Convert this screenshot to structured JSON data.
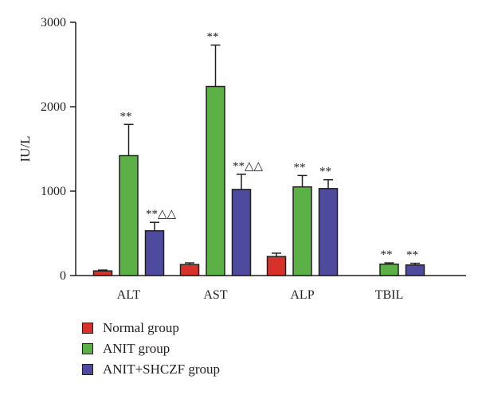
{
  "chart_data": {
    "type": "bar",
    "title": "",
    "xlabel": "",
    "ylabel": "IU/L",
    "ylim": [
      0,
      3000
    ],
    "yticks": [
      "0",
      "1000",
      "2000",
      "3000"
    ],
    "categories": [
      "ALT",
      "AST",
      "ALP",
      "TBIL"
    ],
    "grid": false,
    "legend_position": "bottom-left",
    "series": [
      {
        "name": "Normal group",
        "color": "#d7322a",
        "values": [
          55,
          130,
          225,
          null
        ],
        "errors": [
          10,
          20,
          40,
          null
        ],
        "annotations": [
          "",
          "",
          "",
          ""
        ]
      },
      {
        "name": "ANIT group",
        "color": "#5cb146",
        "values": [
          1420,
          2240,
          1050,
          135
        ],
        "errors": [
          370,
          490,
          135,
          15
        ],
        "annotations": [
          "**",
          "**",
          "**",
          "**"
        ]
      },
      {
        "name": "ANIT+SHCZF group",
        "color": "#4e4a9e",
        "values": [
          530,
          1020,
          1030,
          125
        ],
        "errors": [
          100,
          180,
          105,
          20
        ],
        "annotations": [
          "**△△",
          "**△△",
          "**",
          "**"
        ]
      }
    ]
  }
}
